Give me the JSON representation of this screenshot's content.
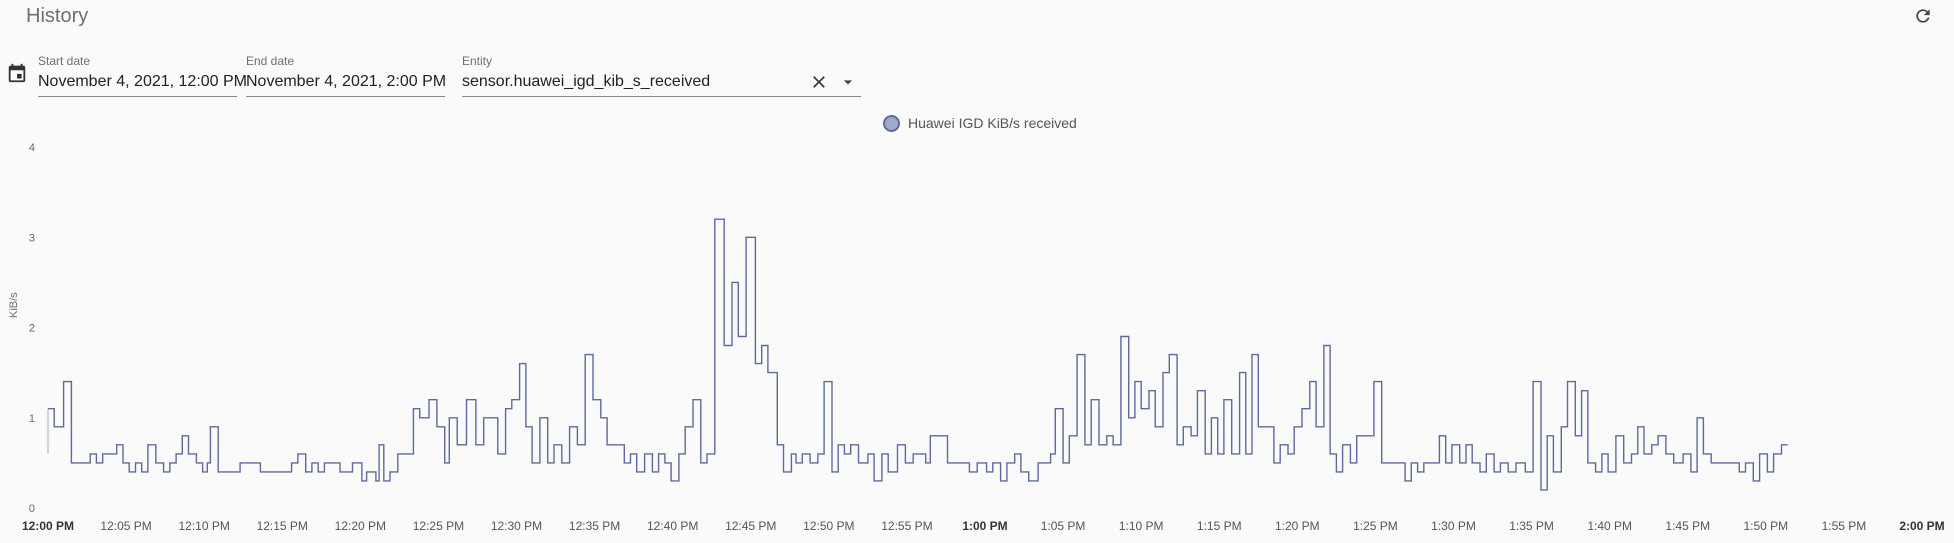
{
  "header": {
    "title": "History",
    "refresh_icon": "refresh-icon"
  },
  "filters": {
    "calendar_icon": "calendar-icon",
    "start_date": {
      "label": "Start date",
      "value": "November 4, 2021, 12:00 PM"
    },
    "end_date": {
      "label": "End date",
      "value": "November 4, 2021, 2:00 PM"
    },
    "entity": {
      "label": "Entity",
      "value": "sensor.huawei_igd_kib_s_received",
      "clear_icon": "close-icon",
      "dropdown_icon": "triangle-down-icon"
    }
  },
  "colors": {
    "line": "#5e6a9e",
    "legend_fill": "#a0a9c8",
    "background": "#fafafa"
  },
  "chart_data": {
    "type": "line",
    "step": true,
    "ylabel": "KiB/s",
    "ylim": [
      0,
      4
    ],
    "yticks": [
      "0",
      "1",
      "2",
      "3",
      "4"
    ],
    "xlabel": "",
    "xlim": [
      0,
      120
    ],
    "xticks": [
      {
        "m": 0,
        "label": "12:00 PM",
        "bold": true
      },
      {
        "m": 5,
        "label": "12:05 PM",
        "bold": false
      },
      {
        "m": 10,
        "label": "12:10 PM",
        "bold": false
      },
      {
        "m": 15,
        "label": "12:15 PM",
        "bold": false
      },
      {
        "m": 20,
        "label": "12:20 PM",
        "bold": false
      },
      {
        "m": 25,
        "label": "12:25 PM",
        "bold": false
      },
      {
        "m": 30,
        "label": "12:30 PM",
        "bold": false
      },
      {
        "m": 35,
        "label": "12:35 PM",
        "bold": false
      },
      {
        "m": 40,
        "label": "12:40 PM",
        "bold": false
      },
      {
        "m": 45,
        "label": "12:45 PM",
        "bold": false
      },
      {
        "m": 50,
        "label": "12:50 PM",
        "bold": false
      },
      {
        "m": 55,
        "label": "12:55 PM",
        "bold": false
      },
      {
        "m": 60,
        "label": "1:00 PM",
        "bold": true
      },
      {
        "m": 65,
        "label": "1:05 PM",
        "bold": false
      },
      {
        "m": 70,
        "label": "1:10 PM",
        "bold": false
      },
      {
        "m": 75,
        "label": "1:15 PM",
        "bold": false
      },
      {
        "m": 80,
        "label": "1:20 PM",
        "bold": false
      },
      {
        "m": 85,
        "label": "1:25 PM",
        "bold": false
      },
      {
        "m": 90,
        "label": "1:30 PM",
        "bold": false
      },
      {
        "m": 95,
        "label": "1:35 PM",
        "bold": false
      },
      {
        "m": 100,
        "label": "1:40 PM",
        "bold": false
      },
      {
        "m": 105,
        "label": "1:45 PM",
        "bold": false
      },
      {
        "m": 110,
        "label": "1:50 PM",
        "bold": false
      },
      {
        "m": 115,
        "label": "1:55 PM",
        "bold": false
      },
      {
        "m": 120,
        "label": "2:00 PM",
        "bold": true
      }
    ],
    "series": [
      {
        "name": "Huawei IGD KiB/s received",
        "points": [
          [
            0,
            1.1
          ],
          [
            0.4,
            0.9
          ],
          [
            1,
            1.4
          ],
          [
            1.5,
            0.5
          ],
          [
            2.5,
            0.5
          ],
          [
            2.7,
            0.6
          ],
          [
            3.1,
            0.5
          ],
          [
            3.5,
            0.6
          ],
          [
            4.4,
            0.7
          ],
          [
            4.8,
            0.5
          ],
          [
            5.2,
            0.4
          ],
          [
            5.6,
            0.5
          ],
          [
            6,
            0.4
          ],
          [
            6.4,
            0.7
          ],
          [
            6.9,
            0.5
          ],
          [
            7.4,
            0.4
          ],
          [
            7.8,
            0.5
          ],
          [
            8.2,
            0.6
          ],
          [
            8.6,
            0.8
          ],
          [
            9,
            0.6
          ],
          [
            9.5,
            0.5
          ],
          [
            9.9,
            0.4
          ],
          [
            10.2,
            0.5
          ],
          [
            10.4,
            0.9
          ],
          [
            10.9,
            0.4
          ],
          [
            12.3,
            0.5
          ],
          [
            13.6,
            0.4
          ],
          [
            15.1,
            0.4
          ],
          [
            15.6,
            0.5
          ],
          [
            16,
            0.6
          ],
          [
            16.5,
            0.4
          ],
          [
            16.9,
            0.5
          ],
          [
            17.3,
            0.4
          ],
          [
            17.7,
            0.5
          ],
          [
            18.2,
            0.5
          ],
          [
            18.7,
            0.4
          ],
          [
            19.5,
            0.5
          ],
          [
            20.1,
            0.3
          ],
          [
            20.4,
            0.4
          ],
          [
            21,
            0.3
          ],
          [
            21.2,
            0.7
          ],
          [
            21.5,
            0.3
          ],
          [
            21.9,
            0.4
          ],
          [
            22.4,
            0.6
          ],
          [
            23.4,
            1.1
          ],
          [
            23.8,
            1.0
          ],
          [
            24.4,
            1.2
          ],
          [
            24.9,
            0.9
          ],
          [
            25.4,
            0.5
          ],
          [
            25.7,
            1.0
          ],
          [
            26.2,
            0.7
          ],
          [
            26.8,
            1.2
          ],
          [
            27.4,
            0.7
          ],
          [
            27.9,
            1.0
          ],
          [
            28.8,
            0.6
          ],
          [
            29.3,
            1.1
          ],
          [
            29.7,
            1.2
          ],
          [
            30.2,
            1.6
          ],
          [
            30.6,
            0.9
          ],
          [
            31,
            0.5
          ],
          [
            31.5,
            1.0
          ],
          [
            32,
            0.5
          ],
          [
            32.4,
            0.7
          ],
          [
            32.9,
            0.5
          ],
          [
            33.4,
            0.9
          ],
          [
            33.9,
            0.7
          ],
          [
            34.4,
            1.7
          ],
          [
            34.9,
            1.2
          ],
          [
            35.4,
            1.0
          ],
          [
            35.8,
            0.7
          ],
          [
            36.9,
            0.5
          ],
          [
            37.3,
            0.6
          ],
          [
            37.7,
            0.4
          ],
          [
            38.2,
            0.6
          ],
          [
            38.7,
            0.4
          ],
          [
            39.1,
            0.6
          ],
          [
            39.5,
            0.5
          ],
          [
            39.9,
            0.3
          ],
          [
            40.4,
            0.6
          ],
          [
            40.8,
            0.9
          ],
          [
            41.3,
            1.2
          ],
          [
            41.8,
            0.5
          ],
          [
            42.2,
            0.6
          ],
          [
            42.7,
            3.2
          ],
          [
            43.3,
            1.8
          ],
          [
            43.8,
            2.5
          ],
          [
            44.2,
            1.9
          ],
          [
            44.7,
            3.0
          ],
          [
            45.3,
            1.6
          ],
          [
            45.7,
            1.8
          ],
          [
            46.1,
            1.5
          ],
          [
            46.7,
            0.7
          ],
          [
            47.1,
            0.4
          ],
          [
            47.6,
            0.6
          ],
          [
            47.9,
            0.5
          ],
          [
            48.3,
            0.6
          ],
          [
            48.8,
            0.5
          ],
          [
            49.3,
            0.6
          ],
          [
            49.7,
            1.4
          ],
          [
            50.2,
            0.4
          ],
          [
            50.6,
            0.7
          ],
          [
            51,
            0.6
          ],
          [
            51.4,
            0.7
          ],
          [
            51.9,
            0.5
          ],
          [
            52.5,
            0.6
          ],
          [
            52.9,
            0.3
          ],
          [
            53.4,
            0.6
          ],
          [
            53.8,
            0.4
          ],
          [
            54.4,
            0.7
          ],
          [
            54.9,
            0.5
          ],
          [
            55.4,
            0.6
          ],
          [
            56.2,
            0.5
          ],
          [
            56.5,
            0.8
          ],
          [
            57.6,
            0.5
          ],
          [
            58.5,
            0.5
          ],
          [
            59,
            0.4
          ],
          [
            59.5,
            0.5
          ],
          [
            60.1,
            0.4
          ],
          [
            60.5,
            0.5
          ],
          [
            61,
            0.3
          ],
          [
            61.4,
            0.5
          ],
          [
            61.9,
            0.6
          ],
          [
            62.3,
            0.4
          ],
          [
            62.8,
            0.3
          ],
          [
            63.4,
            0.5
          ],
          [
            64.2,
            0.6
          ],
          [
            64.5,
            1.1
          ],
          [
            65,
            0.5
          ],
          [
            65.4,
            0.8
          ],
          [
            65.9,
            1.7
          ],
          [
            66.4,
            0.7
          ],
          [
            66.8,
            1.2
          ],
          [
            67.3,
            0.7
          ],
          [
            67.8,
            0.8
          ],
          [
            68.2,
            0.7
          ],
          [
            68.7,
            1.9
          ],
          [
            69.2,
            1.0
          ],
          [
            69.6,
            1.4
          ],
          [
            70,
            1.1
          ],
          [
            70.5,
            1.3
          ],
          [
            70.9,
            0.9
          ],
          [
            71.4,
            1.5
          ],
          [
            71.8,
            1.7
          ],
          [
            72.3,
            0.7
          ],
          [
            72.7,
            0.9
          ],
          [
            73.2,
            0.8
          ],
          [
            73.6,
            1.3
          ],
          [
            74.1,
            0.6
          ],
          [
            74.5,
            1.0
          ],
          [
            74.9,
            0.6
          ],
          [
            75.3,
            1.2
          ],
          [
            75.8,
            0.6
          ],
          [
            76.3,
            1.5
          ],
          [
            76.7,
            0.6
          ],
          [
            77.1,
            1.7
          ],
          [
            77.5,
            0.9
          ],
          [
            78.5,
            0.5
          ],
          [
            78.9,
            0.7
          ],
          [
            79.4,
            0.6
          ],
          [
            79.8,
            0.9
          ],
          [
            80.3,
            1.1
          ],
          [
            80.8,
            1.4
          ],
          [
            81.2,
            0.9
          ],
          [
            81.7,
            1.8
          ],
          [
            82.1,
            0.6
          ],
          [
            82.5,
            0.4
          ],
          [
            82.9,
            0.7
          ],
          [
            83.4,
            0.5
          ],
          [
            83.8,
            0.8
          ],
          [
            84.4,
            0.8
          ],
          [
            84.9,
            1.4
          ],
          [
            85.4,
            0.5
          ],
          [
            86.9,
            0.3
          ],
          [
            87.3,
            0.5
          ],
          [
            87.7,
            0.4
          ],
          [
            88.1,
            0.5
          ],
          [
            89.1,
            0.8
          ],
          [
            89.5,
            0.5
          ],
          [
            89.9,
            0.7
          ],
          [
            90.4,
            0.5
          ],
          [
            90.8,
            0.7
          ],
          [
            91.2,
            0.5
          ],
          [
            91.7,
            0.4
          ],
          [
            92.1,
            0.6
          ],
          [
            92.6,
            0.4
          ],
          [
            93,
            0.5
          ],
          [
            93.5,
            0.4
          ],
          [
            94,
            0.5
          ],
          [
            94.6,
            0.4
          ],
          [
            95.1,
            1.4
          ],
          [
            95.6,
            0.2
          ],
          [
            96,
            0.8
          ],
          [
            96.4,
            0.4
          ],
          [
            96.9,
            0.9
          ],
          [
            97.3,
            1.4
          ],
          [
            97.8,
            0.8
          ],
          [
            98.2,
            1.3
          ],
          [
            98.6,
            0.5
          ],
          [
            99.1,
            0.4
          ],
          [
            99.5,
            0.6
          ],
          [
            99.9,
            0.4
          ],
          [
            100.4,
            0.8
          ],
          [
            100.9,
            0.5
          ],
          [
            101.4,
            0.6
          ],
          [
            101.8,
            0.9
          ],
          [
            102.2,
            0.6
          ],
          [
            102.7,
            0.7
          ],
          [
            103.1,
            0.8
          ],
          [
            103.6,
            0.6
          ],
          [
            104.1,
            0.5
          ],
          [
            104.7,
            0.6
          ],
          [
            105.2,
            0.4
          ],
          [
            105.6,
            1.0
          ],
          [
            106,
            0.6
          ],
          [
            106.5,
            0.5
          ],
          [
            108.3,
            0.4
          ],
          [
            108.7,
            0.5
          ],
          [
            109.2,
            0.3
          ],
          [
            109.6,
            0.6
          ],
          [
            110.1,
            0.4
          ],
          [
            110.5,
            0.6
          ],
          [
            111,
            0.7
          ],
          [
            111.4,
            0.7
          ]
        ]
      }
    ]
  }
}
